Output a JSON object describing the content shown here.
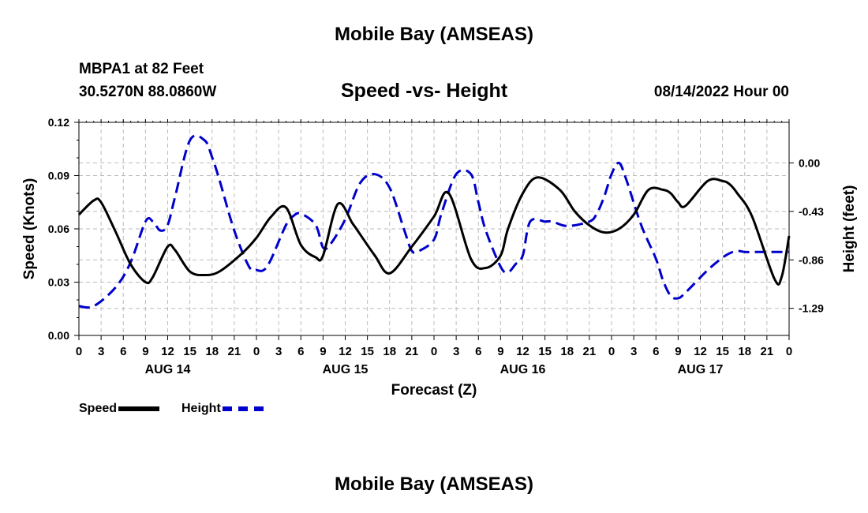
{
  "title": "Mobile Bay (AMSEAS)",
  "station": {
    "name": "MBPA1 at 82 Feet",
    "coords": "30.5270N  88.0860W"
  },
  "subtitle": "Speed -vs- Height",
  "date": "08/14/2022 Hour 00",
  "footer_title": "Mobile Bay (AMSEAS)",
  "chart_data": {
    "type": "line",
    "title": "Speed -vs- Height",
    "xlabel": "Forecast (Z)",
    "x_unit": "forecast hour",
    "xlim": [
      0,
      96
    ],
    "x_tick_step": 3,
    "x_tick_labels": [
      "0",
      "3",
      "6",
      "9",
      "12",
      "15",
      "18",
      "21",
      "0",
      "3",
      "6",
      "9",
      "12",
      "15",
      "18",
      "21",
      "0",
      "3",
      "6",
      "9",
      "12",
      "15",
      "18",
      "21",
      "0",
      "3",
      "6",
      "9",
      "12",
      "15",
      "18",
      "21",
      "0"
    ],
    "day_labels": [
      {
        "label": "AUG 14",
        "x": 12
      },
      {
        "label": "AUG 15",
        "x": 36
      },
      {
        "label": "AUG 16",
        "x": 60
      },
      {
        "label": "AUG 17",
        "x": 84
      }
    ],
    "y_left": {
      "label": "Speed (Knots)",
      "lim": [
        0,
        0.12
      ],
      "ticks": [
        0,
        0.03,
        0.06,
        0.09,
        0.12
      ],
      "tick_labels": [
        "0.00",
        "0.03",
        "0.06",
        "0.09",
        "0.12"
      ]
    },
    "y_right": {
      "label": "Height (feet)",
      "lim": [
        -1.53,
        0.36
      ],
      "ticks": [
        -1.29,
        -0.86,
        -0.43,
        0.0
      ],
      "tick_labels": [
        "-1.29",
        "-0.86",
        "-0.43",
        "0.00"
      ]
    },
    "grid": true,
    "legend_position": "bottom-left",
    "series": [
      {
        "name": "Speed",
        "axis": "left",
        "color": "#000000",
        "style": "solid",
        "x": [
          0,
          2,
          3,
          5,
          7,
          9,
          10,
          12,
          13,
          15,
          17,
          19,
          22,
          24,
          26,
          28,
          30,
          32,
          33,
          35,
          37,
          38,
          40,
          42,
          45,
          48,
          50,
          53,
          55,
          57,
          58,
          60,
          62,
          65,
          67,
          69,
          71,
          73,
          75,
          77,
          79,
          80,
          81,
          82,
          85,
          87,
          88,
          89,
          91,
          94,
          95,
          96
        ],
        "values": [
          0.068,
          0.076,
          0.075,
          0.058,
          0.04,
          0.03,
          0.033,
          0.05,
          0.048,
          0.036,
          0.034,
          0.036,
          0.046,
          0.055,
          0.067,
          0.072,
          0.051,
          0.044,
          0.045,
          0.074,
          0.063,
          0.057,
          0.045,
          0.035,
          0.05,
          0.067,
          0.08,
          0.043,
          0.038,
          0.045,
          0.06,
          0.08,
          0.089,
          0.082,
          0.07,
          0.062,
          0.058,
          0.06,
          0.068,
          0.082,
          0.082,
          0.08,
          0.075,
          0.073,
          0.087,
          0.087,
          0.085,
          0.08,
          0.067,
          0.032,
          0.033,
          0.056
        ]
      },
      {
        "name": "Height",
        "axis": "right",
        "color": "#0000cc",
        "style": "dashed",
        "x": [
          0,
          2,
          5,
          7,
          9,
          10,
          11,
          12,
          13,
          15,
          17,
          18,
          19,
          21,
          23,
          24,
          25,
          26,
          28,
          29,
          30,
          32,
          33,
          34,
          36,
          38,
          40,
          42,
          44,
          45,
          46,
          48,
          49,
          51,
          53,
          54,
          55,
          57,
          58,
          59,
          60,
          61,
          63,
          64,
          66,
          69,
          70,
          71,
          72,
          73,
          74,
          76,
          78,
          79,
          80,
          81,
          82,
          85,
          87,
          88,
          89,
          90,
          91,
          93,
          94,
          95,
          96
        ],
        "values": [
          -1.27,
          -1.27,
          -1.1,
          -0.88,
          -0.52,
          -0.52,
          -0.6,
          -0.55,
          -0.3,
          0.2,
          0.2,
          0.05,
          -0.15,
          -0.6,
          -0.92,
          -0.95,
          -0.95,
          -0.85,
          -0.55,
          -0.47,
          -0.45,
          -0.55,
          -0.75,
          -0.72,
          -0.5,
          -0.18,
          -0.1,
          -0.22,
          -0.6,
          -0.78,
          -0.78,
          -0.68,
          -0.45,
          -0.1,
          -0.1,
          -0.35,
          -0.6,
          -0.92,
          -0.97,
          -0.9,
          -0.82,
          -0.52,
          -0.52,
          -0.52,
          -0.56,
          -0.52,
          -0.45,
          -0.3,
          -0.1,
          0.0,
          -0.15,
          -0.55,
          -0.85,
          -1.05,
          -1.18,
          -1.2,
          -1.15,
          -0.95,
          -0.84,
          -0.8,
          -0.78,
          -0.79,
          -0.79,
          -0.79,
          -0.79,
          -0.79,
          -0.79
        ]
      }
    ]
  }
}
